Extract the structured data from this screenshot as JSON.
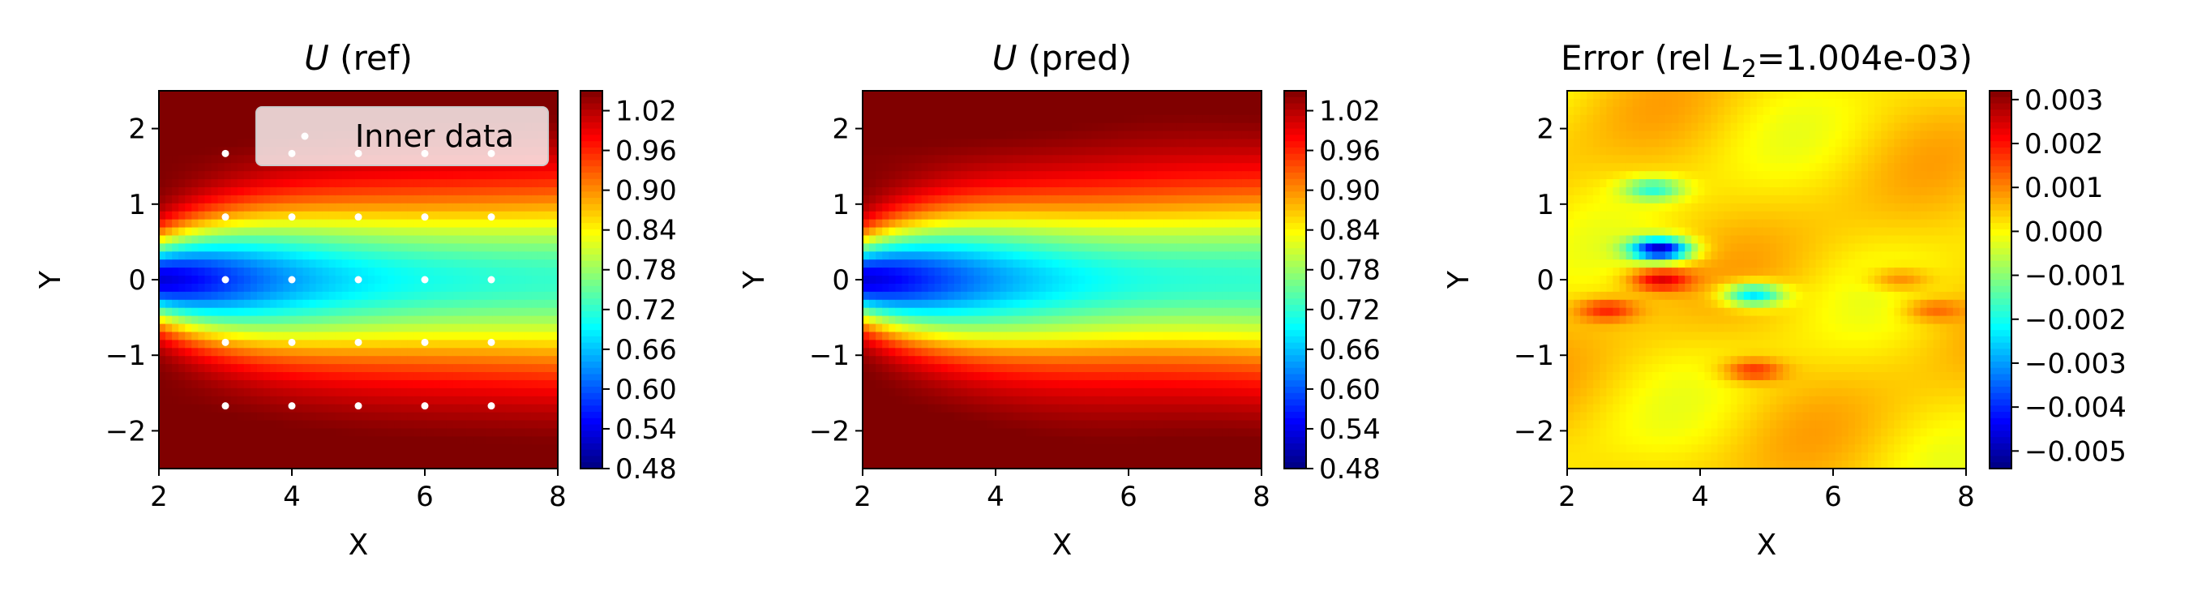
{
  "chart_data": [
    {
      "type": "heatmap",
      "title": "U (ref)",
      "title_symbol": "U",
      "title_rest": " (ref)",
      "xlabel": "X",
      "ylabel": "Y",
      "xlim": [
        2,
        8
      ],
      "ylim": [
        -2.5,
        2.5
      ],
      "xticks": [
        "2",
        "4",
        "6",
        "8"
      ],
      "yticks": [
        "−2",
        "−1",
        "0",
        "1",
        "2"
      ],
      "field": "U",
      "colormap": "jet",
      "colorbar": {
        "range": [
          0.48,
          1.05
        ],
        "ticks": [
          "0.48",
          "0.54",
          "0.60",
          "0.66",
          "0.72",
          "0.78",
          "0.84",
          "0.90",
          "0.96",
          "1.02"
        ]
      },
      "legend": {
        "label": "Inner data",
        "placement": "upper right"
      },
      "scatter": {
        "name": "Inner data",
        "color": "#ffffff",
        "x": [
          3,
          4,
          5,
          6,
          7
        ],
        "y": [
          -1.67,
          -0.83,
          0,
          0.83,
          1.67
        ]
      }
    },
    {
      "type": "heatmap",
      "title": "U (pred)",
      "title_symbol": "U",
      "title_rest": " (pred)",
      "xlabel": "X",
      "ylabel": "Y",
      "xlim": [
        2,
        8
      ],
      "ylim": [
        -2.5,
        2.5
      ],
      "xticks": [
        "2",
        "4",
        "6",
        "8"
      ],
      "yticks": [
        "−2",
        "−1",
        "0",
        "1",
        "2"
      ],
      "field": "U",
      "colormap": "jet",
      "colorbar": {
        "range": [
          0.48,
          1.05
        ],
        "ticks": [
          "0.48",
          "0.54",
          "0.60",
          "0.66",
          "0.72",
          "0.78",
          "0.84",
          "0.90",
          "0.96",
          "1.02"
        ]
      }
    },
    {
      "type": "heatmap",
      "title": "Error (rel L2=1.004e-03)",
      "title_pre": "Error (rel ",
      "title_symbol": "L",
      "title_sub": "2",
      "title_post": "=1.004e-03)",
      "xlabel": "X",
      "ylabel": "Y",
      "xlim": [
        2,
        8
      ],
      "ylim": [
        -2.5,
        2.5
      ],
      "xticks": [
        "2",
        "4",
        "6",
        "8"
      ],
      "yticks": [
        "−2",
        "−1",
        "0",
        "1",
        "2"
      ],
      "field": "error",
      "colormap": "jet",
      "colorbar": {
        "range": [
          -0.0054,
          0.0032
        ],
        "ticks": [
          "0.003",
          "0.002",
          "0.001",
          "0.000",
          "−0.001",
          "−0.002",
          "−0.003",
          "−0.004",
          "−0.005"
        ]
      },
      "error_features": [
        {
          "x": 3.4,
          "y": 0.4,
          "value": -0.005
        },
        {
          "x": 4.8,
          "y": -0.2,
          "value": -0.003
        },
        {
          "x": 3.3,
          "y": 1.2,
          "value": -0.002
        },
        {
          "x": 3.4,
          "y": 0.0,
          "value": 0.002
        },
        {
          "x": 2.6,
          "y": -0.4,
          "value": 0.0015
        },
        {
          "x": 4.8,
          "y": -1.2,
          "value": 0.0015
        },
        {
          "x": 7.0,
          "y": 0.0,
          "value": 0.001
        },
        {
          "x": 7.5,
          "y": -0.4,
          "value": 0.001
        }
      ]
    }
  ]
}
